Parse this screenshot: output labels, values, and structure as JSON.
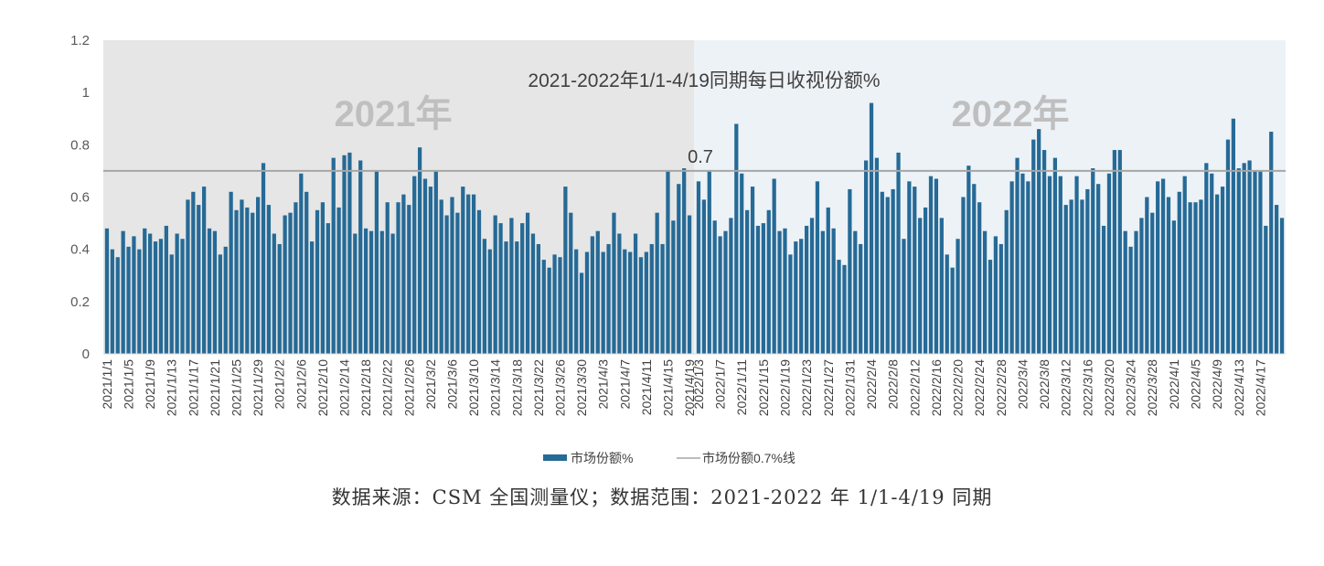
{
  "chart_data": {
    "type": "bar",
    "title": "2021-2022年1/1-4/19同期每日收视份额%",
    "region_labels": [
      "2021年",
      "2022年"
    ],
    "colors": {
      "bar": "#266a96",
      "ref_line": "#a6a6a6",
      "bg_2021": "#e6e6e6",
      "bg_2022": "#edf2f7"
    },
    "ylim": [
      0,
      1.2
    ],
    "yticks": [
      "0",
      "0.2",
      "0.4",
      "0.6",
      "0.8",
      "1",
      "1.2"
    ],
    "reference_line": {
      "value": 0.7,
      "label": "0.7"
    },
    "legend": {
      "series_label": "市场份额%",
      "line_label": "市场份额0.7%线",
      "position": "bottom"
    },
    "series": [
      {
        "name": "市场份额%",
        "values_2021": [
          0.48,
          0.4,
          0.37,
          0.47,
          0.41,
          0.45,
          0.4,
          0.48,
          0.46,
          0.43,
          0.44,
          0.49,
          0.38,
          0.46,
          0.44,
          0.59,
          0.62,
          0.57,
          0.64,
          0.48,
          0.47,
          0.38,
          0.41,
          0.62,
          0.55,
          0.59,
          0.56,
          0.54,
          0.6,
          0.73,
          0.57,
          0.46,
          0.42,
          0.53,
          0.54,
          0.58,
          0.69,
          0.62,
          0.43,
          0.55,
          0.58,
          0.5,
          0.75,
          0.56,
          0.76,
          0.77,
          0.46,
          0.74,
          0.48,
          0.47,
          0.7,
          0.47,
          0.58,
          0.46,
          0.58,
          0.61,
          0.57,
          0.68,
          0.79,
          0.67,
          0.64,
          0.7,
          0.59,
          0.53,
          0.6,
          0.54,
          0.64,
          0.61,
          0.61,
          0.55,
          0.44,
          0.4,
          0.53,
          0.5,
          0.43,
          0.52,
          0.43,
          0.5,
          0.54,
          0.46,
          0.42,
          0.36,
          0.33,
          0.38,
          0.37,
          0.64,
          0.54,
          0.4,
          0.31,
          0.39,
          0.45,
          0.47,
          0.39,
          0.42,
          0.54,
          0.46,
          0.4,
          0.39,
          0.46,
          0.37,
          0.39,
          0.42,
          0.54,
          0.42,
          0.7,
          0.51,
          0.65,
          0.71,
          0.53
        ],
        "values_2022": [
          0.66,
          0.59,
          0.7,
          0.51,
          0.45,
          0.47,
          0.52,
          0.88,
          0.69,
          0.55,
          0.64,
          0.49,
          0.5,
          0.55,
          0.67,
          0.47,
          0.48,
          0.38,
          0.43,
          0.44,
          0.49,
          0.52,
          0.66,
          0.47,
          0.56,
          0.48,
          0.36,
          0.34,
          0.63,
          0.47,
          0.42,
          0.74,
          0.96,
          0.75,
          0.62,
          0.6,
          0.63,
          0.77,
          0.44,
          0.66,
          0.64,
          0.52,
          0.56,
          0.68,
          0.67,
          0.52,
          0.38,
          0.33,
          0.44,
          0.6,
          0.72,
          0.65,
          0.58,
          0.47,
          0.36,
          0.45,
          0.42,
          0.55,
          0.66,
          0.75,
          0.69,
          0.66,
          0.82,
          0.86,
          0.78,
          0.68,
          0.75,
          0.68,
          0.57,
          0.59,
          0.68,
          0.59,
          0.63,
          0.71,
          0.65,
          0.49,
          0.69,
          0.78,
          0.78,
          0.47,
          0.41,
          0.47,
          0.52,
          0.6,
          0.54,
          0.66,
          0.67,
          0.6,
          0.51,
          0.62,
          0.68,
          0.58,
          0.58,
          0.59,
          0.73,
          0.69,
          0.61,
          0.64,
          0.82,
          0.9,
          0.71,
          0.73,
          0.74,
          0.7,
          0.7,
          0.49,
          0.85,
          0.57,
          0.52
        ]
      }
    ],
    "x_tick_labels_2021": [
      "2021/1/1",
      "2021/1/5",
      "2021/1/9",
      "2021/1/13",
      "2021/1/17",
      "2021/1/21",
      "2021/1/25",
      "2021/1/29",
      "2021/2/2",
      "2021/2/6",
      "2021/2/10",
      "2021/2/14",
      "2021/2/18",
      "2021/2/22",
      "2021/2/26",
      "2021/3/2",
      "2021/3/6",
      "2021/3/10",
      "2021/3/14",
      "2021/3/18",
      "2021/3/22",
      "2021/3/26",
      "2021/3/30",
      "2021/4/3",
      "2021/4/7",
      "2021/4/11",
      "2021/4/15",
      "2021/4/19"
    ],
    "x_tick_labels_2022": [
      "2022/1/3",
      "2022/1/7",
      "2022/1/11",
      "2022/1/15",
      "2022/1/19",
      "2022/1/23",
      "2022/1/27",
      "2022/1/31",
      "2022/2/4",
      "2022/2/8",
      "2022/2/12",
      "2022/2/16",
      "2022/2/20",
      "2022/2/24",
      "2022/2/28",
      "2022/3/4",
      "2022/3/8",
      "2022/3/12",
      "2022/3/16",
      "2022/3/20",
      "2022/3/24",
      "2022/3/28",
      "2022/4/1",
      "2022/4/5",
      "2022/4/9",
      "2022/4/13",
      "2022/4/17"
    ]
  },
  "source_note": "数据来源：CSM 全国测量仪；数据范围：2021-2022 年 1/1-4/19 同期"
}
